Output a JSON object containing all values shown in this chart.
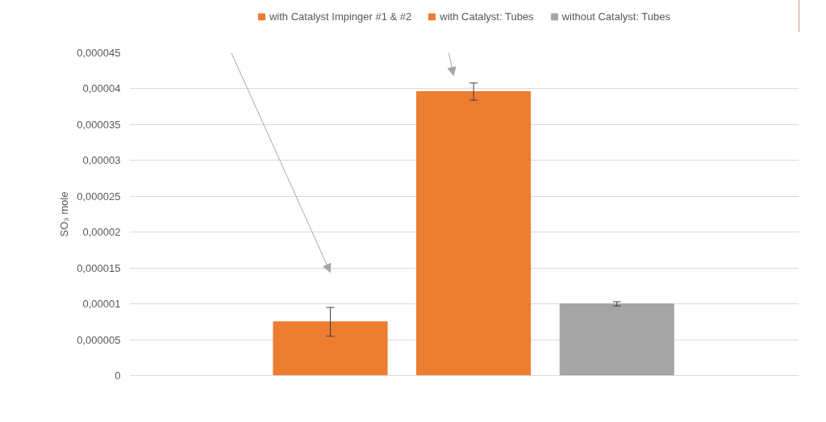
{
  "chart_data": {
    "type": "bar",
    "ylabel": "SO₃ mole",
    "categories": [
      null
    ],
    "series": [
      {
        "name": "with Catalyst Impinger #1 & #2",
        "color": "#ed7d31",
        "values": [
          7.5e-06
        ],
        "errors": [
          2e-06
        ]
      },
      {
        "name": "with Catalyst: Tubes",
        "color": "#ed7d31",
        "values": [
          3.96e-05
        ],
        "errors": [
          1.2e-06
        ]
      },
      {
        "name": "without Catalyst: Tubes",
        "color": "#a5a5a5",
        "values": [
          1e-05
        ],
        "errors": [
          3e-07
        ]
      }
    ],
    "ylim": [
      0,
      4.5e-05
    ],
    "yticks": [
      0,
      {
        "value": 5e-06,
        "label": "0,000005"
      },
      {
        "value": 1e-05,
        "label": "0,00001"
      },
      {
        "value": 1.5e-05,
        "label": "0,000015"
      },
      {
        "value": 2e-05,
        "label": "0,00002"
      },
      {
        "value": 2.5e-05,
        "label": "0,000025"
      },
      {
        "value": 3e-05,
        "label": "0,00003"
      },
      {
        "value": 3.5e-05,
        "label": "0,000035"
      },
      {
        "value": 4e-05,
        "label": "0,00004"
      },
      {
        "value": 4.5e-05,
        "label": "0,000045"
      }
    ],
    "grid": "y",
    "legend": "top"
  }
}
